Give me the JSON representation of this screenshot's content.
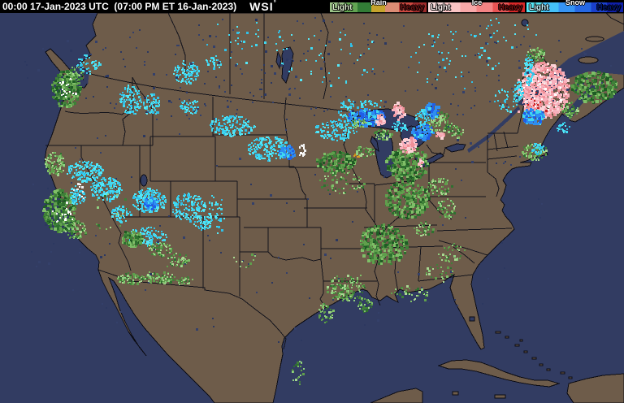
{
  "header": {
    "timestamp": "00:00 17-Jan-2023 UTC  (07:00 PM ET 16-Jan-2023)",
    "logo": "WSI",
    "logo_mark": "°",
    "legend": [
      {
        "label": "Rain",
        "light": "Light",
        "heavy": "Heavy",
        "colors": [
          "#9cc488",
          "#62a452",
          "#327c36",
          "#c6a42c",
          "#dc8c74",
          "#cc4840",
          "#9e2a2a"
        ],
        "light_color": "#d8ecc8",
        "heavy_color": "#6e1414"
      },
      {
        "label": "Ice",
        "light": "Light",
        "heavy": "Heavy",
        "colors": [
          "#fcdcdc",
          "#fac4c4",
          "#f8a8a8",
          "#f48484",
          "#e85454",
          "#d62828"
        ],
        "light_color": "#fff0f0",
        "heavy_color": "#7a0e0e"
      },
      {
        "label": "Snow",
        "light": "Light",
        "heavy": "Heavy",
        "colors": [
          "#54e8f8",
          "#44c0f8",
          "#3694f4",
          "#2668e4",
          "#1a40cc",
          "#0e1fa8"
        ],
        "light_color": "#c8f6ff",
        "heavy_color": "#001670"
      }
    ]
  },
  "map": {
    "colors": {
      "ocean": "#323c62",
      "land": "#6e5c4a",
      "outline": "#0c0c14",
      "border": "#14141c"
    },
    "palettes": {
      "rain": [
        "#5f9f4c",
        "#5f9f4c",
        "#7fbf68",
        "#8fcf80",
        "#3f8038",
        "#2f7030",
        "#a8d890"
      ],
      "raind": [
        "#3f8038",
        "#2f7030",
        "#5f9f4c",
        "#1e5c24",
        "#7fbf68",
        "#5f9f4c"
      ],
      "snow": [
        "#40d8f0",
        "#40d8f0",
        "#55e8f8",
        "#30c0e8"
      ],
      "snowh": [
        "#2e8ef0",
        "#1f5fe8",
        "#40d8f0",
        "#2e8ef0"
      ],
      "ice": [
        "#f8b0bc",
        "#f8b0bc",
        "#fbd4d8",
        "#f09098"
      ],
      "white": [
        "#ffffff",
        "#f0f0f0"
      ],
      "red": [
        "#e03030",
        "#c82020"
      ],
      "orange": [
        "#d8a020",
        "#c88818"
      ],
      "navy": [
        "#2c3860",
        "#34406a"
      ]
    },
    "dot_size": {
      "rain": 2,
      "raind": 3,
      "snow": 2,
      "snowh": 3,
      "ice": 3,
      "white": 2,
      "red": 2,
      "orange": 2,
      "navy": 2
    },
    "precip": [
      [
        "snow",
        108,
        62,
        14,
        12,
        45
      ],
      [
        "raind",
        80,
        92,
        18,
        22,
        240
      ],
      [
        "rain",
        92,
        74,
        10,
        9,
        45
      ],
      [
        "white",
        82,
        90,
        12,
        14,
        16
      ],
      [
        "snow",
        160,
        106,
        14,
        20,
        110
      ],
      [
        "snow",
        186,
        112,
        10,
        14,
        60
      ],
      [
        "snow",
        228,
        72,
        16,
        14,
        100
      ],
      [
        "snow",
        232,
        114,
        12,
        10,
        50
      ],
      [
        "snow",
        262,
        60,
        10,
        8,
        28
      ],
      [
        "rain",
        67,
        184,
        13,
        15,
        110
      ],
      [
        "raind",
        72,
        242,
        20,
        26,
        280
      ],
      [
        "rain",
        92,
        266,
        13,
        12,
        85
      ],
      [
        "white",
        76,
        248,
        14,
        18,
        18
      ],
      [
        "snow",
        103,
        194,
        22,
        13,
        160
      ],
      [
        "snow",
        130,
        216,
        20,
        15,
        150
      ],
      [
        "snow",
        94,
        224,
        10,
        12,
        65
      ],
      [
        "white",
        98,
        218,
        8,
        10,
        12
      ],
      [
        "snow",
        182,
        230,
        21,
        15,
        180
      ],
      [
        "snowh",
        185,
        233,
        9,
        7,
        60
      ],
      [
        "snow",
        231,
        238,
        21,
        17,
        150
      ],
      [
        "snow",
        249,
        257,
        11,
        9,
        50
      ],
      [
        "snow",
        148,
        246,
        12,
        10,
        55
      ],
      [
        "snow",
        180,
        274,
        25,
        11,
        120
      ],
      [
        "raind",
        162,
        277,
        13,
        9,
        100
      ],
      [
        "rain",
        196,
        290,
        15,
        9,
        70
      ],
      [
        "rain",
        218,
        303,
        13,
        9,
        50
      ],
      [
        "rain",
        160,
        326,
        17,
        7,
        80
      ],
      [
        "rain",
        196,
        325,
        19,
        7,
        90
      ],
      [
        "rain",
        226,
        329,
        11,
        5,
        32
      ],
      [
        "snow",
        265,
        246,
        11,
        26,
        42
      ],
      [
        "snow",
        285,
        138,
        28,
        13,
        150
      ],
      [
        "snow",
        330,
        166,
        26,
        15,
        170
      ],
      [
        "snowh",
        352,
        170,
        9,
        9,
        60
      ],
      [
        "white",
        371,
        168,
        5,
        8,
        22
      ],
      [
        "snow",
        413,
        143,
        26,
        13,
        130
      ],
      [
        "snow",
        440,
        118,
        28,
        13,
        110
      ],
      [
        "snowh",
        450,
        127,
        24,
        11,
        130
      ],
      [
        "ice",
        489,
        120,
        7,
        11,
        40
      ],
      [
        "ice",
        467,
        130,
        6,
        6,
        26
      ],
      [
        "rain",
        440,
        135,
        10,
        6,
        35
      ],
      [
        "raind",
        412,
        182,
        24,
        13,
        140
      ],
      [
        "orange",
        438,
        175,
        4,
        2,
        8
      ],
      [
        "rain",
        420,
        208,
        28,
        14,
        65
      ],
      [
        "rain",
        448,
        170,
        12,
        8,
        45
      ],
      [
        "raind",
        500,
        184,
        26,
        21,
        280
      ],
      [
        "ice",
        502,
        161,
        11,
        9,
        70
      ],
      [
        "snowh",
        519,
        145,
        13,
        10,
        85
      ],
      [
        "rain",
        470,
        149,
        11,
        7,
        50
      ],
      [
        "snow",
        491,
        138,
        9,
        6,
        30
      ],
      [
        "rain",
        540,
        133,
        15,
        13,
        100
      ],
      [
        "snowh",
        529,
        119,
        11,
        9,
        65
      ],
      [
        "snow",
        519,
        127,
        9,
        7,
        36
      ],
      [
        "ice",
        540,
        149,
        5,
        4,
        16
      ],
      [
        "ice",
        517,
        183,
        3,
        4,
        9
      ],
      [
        "rain",
        560,
        145,
        10,
        8,
        40
      ],
      [
        "raind",
        500,
        228,
        28,
        23,
        250
      ],
      [
        "rain",
        540,
        213,
        15,
        11,
        65
      ],
      [
        "rain",
        548,
        240,
        11,
        13,
        50
      ],
      [
        "raind",
        470,
        284,
        30,
        25,
        290
      ],
      [
        "rain",
        425,
        338,
        24,
        17,
        150
      ],
      [
        "rain",
        400,
        368,
        9,
        13,
        40
      ],
      [
        "rain",
        448,
        358,
        10,
        9,
        36
      ],
      [
        "rain",
        366,
        442,
        9,
        15,
        30
      ],
      [
        "rain",
        555,
        294,
        17,
        13,
        36
      ],
      [
        "rain",
        520,
        265,
        12,
        9,
        36
      ],
      [
        "ice",
        668,
        94,
        32,
        34,
        600
      ],
      [
        "white",
        668,
        94,
        26,
        28,
        46
      ],
      [
        "red",
        661,
        110,
        13,
        15,
        12
      ],
      [
        "snow",
        650,
        68,
        6,
        20,
        75
      ],
      [
        "snow",
        637,
        98,
        6,
        15,
        50
      ],
      [
        "snowh",
        655,
        126,
        13,
        10,
        110
      ],
      [
        "snow",
        620,
        108,
        13,
        16,
        32
      ],
      [
        "raind",
        730,
        90,
        28,
        19,
        240
      ],
      [
        "rain",
        700,
        118,
        11,
        9,
        55
      ],
      [
        "rain",
        659,
        50,
        11,
        8,
        70
      ],
      [
        "rain",
        657,
        170,
        15,
        11,
        90
      ],
      [
        "snow",
        661,
        166,
        9,
        7,
        25
      ],
      [
        "snow",
        692,
        140,
        8,
        6,
        22
      ],
      [
        "snow",
        560,
        55,
        55,
        38,
        50
      ],
      [
        "snow",
        400,
        55,
        75,
        38,
        42
      ],
      [
        "snow",
        300,
        35,
        55,
        28,
        32
      ],
      [
        "snow",
        620,
        25,
        40,
        20,
        22
      ],
      [
        "navy",
        384,
        70,
        370,
        68,
        230
      ],
      [
        "navy",
        350,
        250,
        330,
        170,
        140
      ],
      [
        "rain",
        505,
        345,
        25,
        10,
        36
      ],
      [
        "rain",
        540,
        320,
        18,
        12,
        26
      ],
      [
        "rain",
        135,
        240,
        25,
        30,
        18
      ],
      [
        "rain",
        300,
        305,
        20,
        10,
        10
      ]
    ]
  }
}
